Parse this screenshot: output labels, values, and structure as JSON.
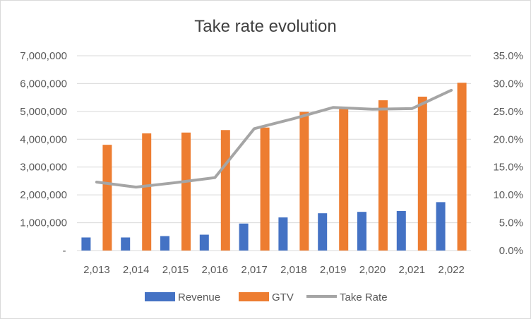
{
  "chart_data": {
    "type": "bar",
    "title": "Take rate evolution",
    "categories": [
      "2,013",
      "2,014",
      "2,015",
      "2,016",
      "2,017",
      "2,018",
      "2,019",
      "2,020",
      "2,021",
      "2,022"
    ],
    "series": [
      {
        "name": "Revenue",
        "kind": "bar",
        "axis": "left",
        "color": "#4472c4",
        "values": [
          470000,
          470000,
          520000,
          570000,
          970000,
          1190000,
          1340000,
          1390000,
          1420000,
          1740000
        ]
      },
      {
        "name": "GTV",
        "kind": "bar",
        "axis": "left",
        "color": "#ed7d31",
        "values": [
          3800000,
          4210000,
          4240000,
          4330000,
          4420000,
          4980000,
          5140000,
          5400000,
          5530000,
          6030000
        ]
      },
      {
        "name": "Take Rate",
        "kind": "line",
        "axis": "right",
        "color": "#a5a5a5",
        "values": [
          0.123,
          0.114,
          0.122,
          0.131,
          0.219,
          0.237,
          0.257,
          0.254,
          0.255,
          0.288
        ]
      }
    ],
    "ylim": [
      0,
      7000000
    ],
    "y_ticks": [
      "-",
      "1,000,000",
      "2,000,000",
      "3,000,000",
      "4,000,000",
      "5,000,000",
      "6,000,000",
      "7,000,000"
    ],
    "y2lim": [
      0,
      0.35
    ],
    "y2_ticks": [
      "0.0%",
      "5.0%",
      "10.0%",
      "15.0%",
      "20.0%",
      "25.0%",
      "30.0%",
      "35.0%"
    ],
    "grid": true,
    "legend": "bottom"
  }
}
